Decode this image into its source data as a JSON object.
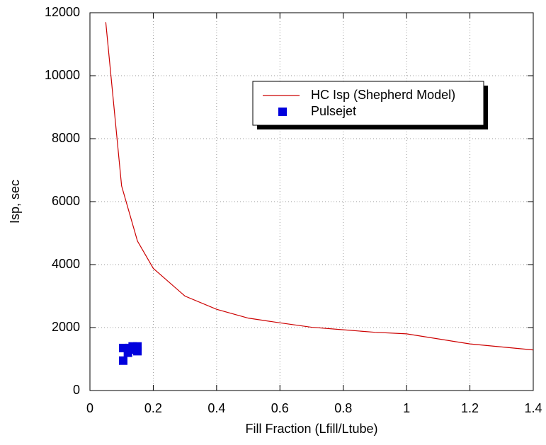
{
  "chart_data": {
    "type": "line",
    "x_label": "Fill Fraction (Lfill/Ltube)",
    "y_label": "Isp, sec",
    "xlim": [
      0,
      1.4
    ],
    "xticks": [
      0,
      0.2,
      0.4,
      0.6,
      0.8,
      1,
      1.2,
      1.4
    ],
    "ylim": [
      0,
      12000
    ],
    "yticks": [
      0,
      2000,
      4000,
      6000,
      8000,
      10000,
      12000
    ],
    "grid": true,
    "legend": "upper right",
    "series": [
      {
        "name": "HC Isp (Shepherd Model)",
        "color": "#cc0000",
        "type": "line",
        "x": [
          0.05,
          0.1,
          0.15,
          0.2,
          0.3,
          0.4,
          0.5,
          0.6,
          0.7,
          0.8,
          0.9,
          1,
          1.2,
          1.4
        ],
        "values": [
          11700,
          6500,
          4750,
          3880,
          3000,
          2580,
          2300,
          2150,
          2010,
          1930,
          1850,
          1800,
          1480,
          1290
        ]
      },
      {
        "name": "Pulsejet",
        "color": "#0000dd",
        "type": "scatter",
        "x": [
          0.105,
          0.105,
          0.12,
          0.125,
          0.135,
          0.14,
          0.15,
          0.15
        ],
        "values": [
          950,
          1350,
          1200,
          1350,
          1400,
          1300,
          1400,
          1250
        ]
      }
    ]
  }
}
